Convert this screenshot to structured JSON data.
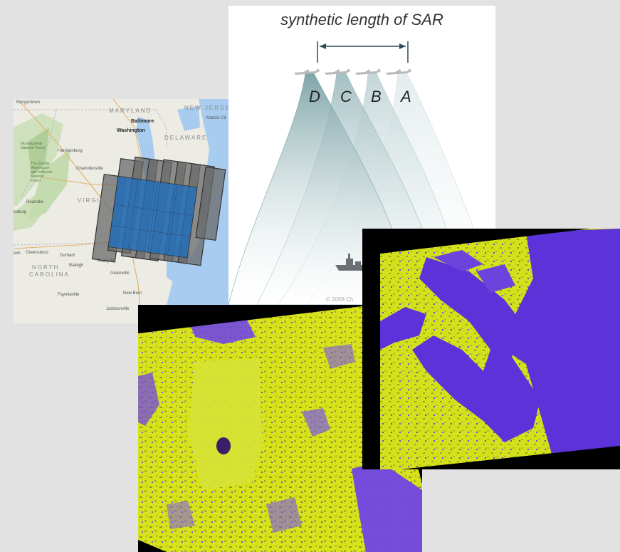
{
  "map": {
    "state_labels": {
      "maryland": "MARYLAND",
      "new_jersey": "NEW JERSE",
      "delaware": "DELAWARE",
      "virginia": "VIRGINI",
      "north": "NORTH",
      "carolina": "CAROLINA"
    },
    "city_labels": {
      "morgantown": "Morgantown",
      "baltimore": "Baltimore",
      "washington": "Washington",
      "harrisonburg": "Harrisonburg",
      "charlottesville": "Charlottesville",
      "roanoke": "Roanoke",
      "lynchburg": "ksburg",
      "greensboro": "Greensboro",
      "durham": "Durham",
      "raleigh": "Raleigh",
      "rocky_mount": "Rocky M",
      "greenville": "Greenville",
      "fayetteville": "Fayetteville",
      "new_bern": "New Bern",
      "jacksonville": "Jacksonville",
      "winston": "lem",
      "atlantic_city": "Atlantic Cit"
    },
    "water_labels": {
      "atlantic": ""
    },
    "park_labels": {
      "monongahela": "Monongahela\nNational Forest",
      "george_washington": "The George\nWashington\nand Jefferson\nNational\nForest"
    },
    "highway_shields": [
      "68",
      "79",
      "81",
      "70",
      "95",
      "270",
      "64",
      "85",
      "40",
      "77"
    ],
    "colors": {
      "land": "#ecebe4",
      "forest": "#c9dfb5",
      "water": "#a8ccf0",
      "footprint_fill": "#666666",
      "footprint_overlap": "#1f6fbf"
    }
  },
  "diagram": {
    "title": "synthetic length of SAR",
    "positions": [
      "D",
      "C",
      "B",
      "A"
    ],
    "copyright": "© 2008 Ch",
    "colors": {
      "beam_dark": "#7fa5a8",
      "beam_light": "#d4e3e4"
    }
  },
  "sar_images": {
    "left": {
      "colors": {
        "land": "#d8e21a",
        "water": "#6b3df0",
        "frame": "#000000"
      }
    },
    "right": {
      "colors": {
        "land": "#d3e01c",
        "water": "#5c33d8",
        "frame": "#000000"
      }
    }
  }
}
